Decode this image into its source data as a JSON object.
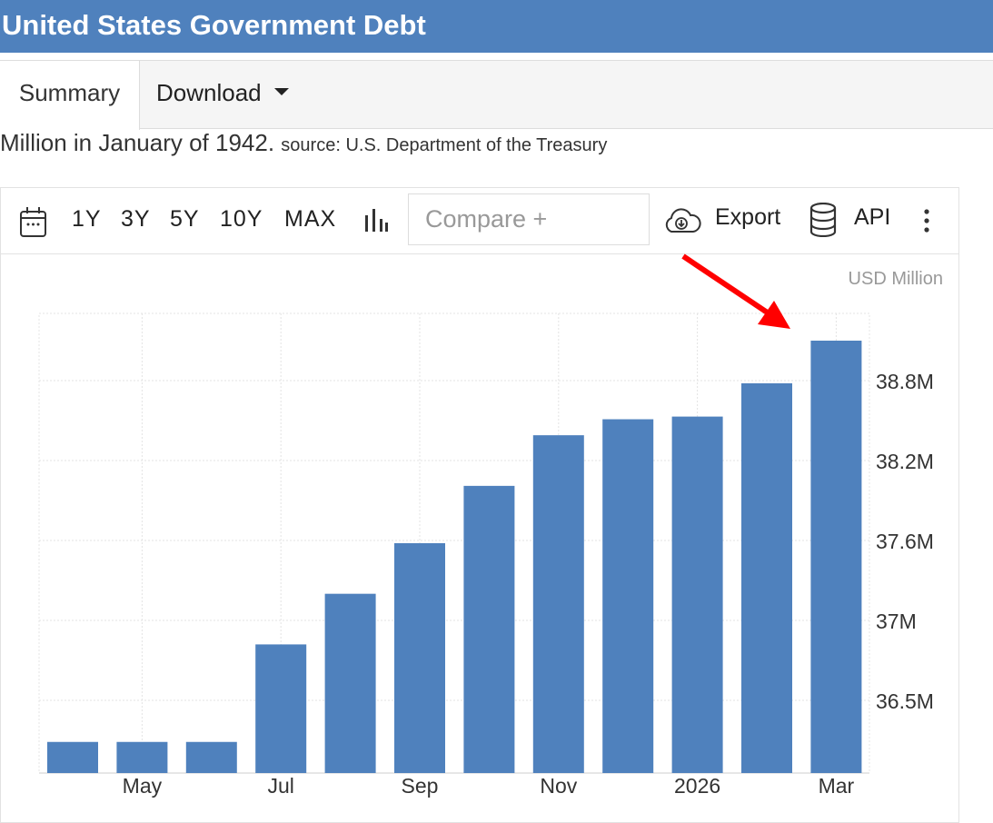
{
  "header": {
    "title": "United States Government Debt"
  },
  "tabs": [
    {
      "label": "Summary"
    },
    {
      "label": "Download"
    }
  ],
  "description": {
    "text": "Million in January of 1942.",
    "source": "source: U.S. Department of the Treasury"
  },
  "toolbar": {
    "ranges": [
      "1Y",
      "3Y",
      "5Y",
      "10Y",
      "MAX"
    ],
    "compare_placeholder": "Compare +",
    "export_label": "Export",
    "api_label": "API",
    "icons": [
      "calendar-icon",
      "bar-chart-icon",
      "cloud-download-icon",
      "database-icon",
      "more-vertical-icon"
    ]
  },
  "colors": {
    "bar": "#4f81bd",
    "header": "#4f81bd",
    "annotation_arrow": "#ff0000"
  },
  "chart_data": {
    "type": "bar",
    "unit_label": "USD Million",
    "categories": [
      "Apr 2025",
      "May 2025",
      "Jun 2025",
      "Jul 2025",
      "Aug 2025",
      "Sep 2025",
      "Oct 2025",
      "Nov 2025",
      "Dec 2025",
      "Jan 2026",
      "Feb 2026",
      "Mar 2026"
    ],
    "values": [
      36.24,
      36.24,
      36.24,
      36.85,
      37.2,
      37.58,
      38.01,
      38.39,
      38.51,
      38.53,
      38.78,
      39.1
    ],
    "x_tick_labels": [
      {
        "index": 1,
        "label": "May"
      },
      {
        "index": 3,
        "label": "Jul"
      },
      {
        "index": 5,
        "label": "Sep"
      },
      {
        "index": 7,
        "label": "Nov"
      },
      {
        "index": 9,
        "label": "2026"
      },
      {
        "index": 11,
        "label": "Mar"
      }
    ],
    "y_ticks": [
      {
        "value": 36.5,
        "label": "36.5M"
      },
      {
        "value": 37,
        "label": "37M"
      },
      {
        "value": 37.6,
        "label": "37.6M"
      },
      {
        "value": 38.2,
        "label": "38.2M"
      },
      {
        "value": 38.8,
        "label": "38.8M"
      }
    ],
    "y_axis_position": "right",
    "grid": true,
    "legend": "none",
    "annotation": "red arrow pointing to latest bar"
  }
}
